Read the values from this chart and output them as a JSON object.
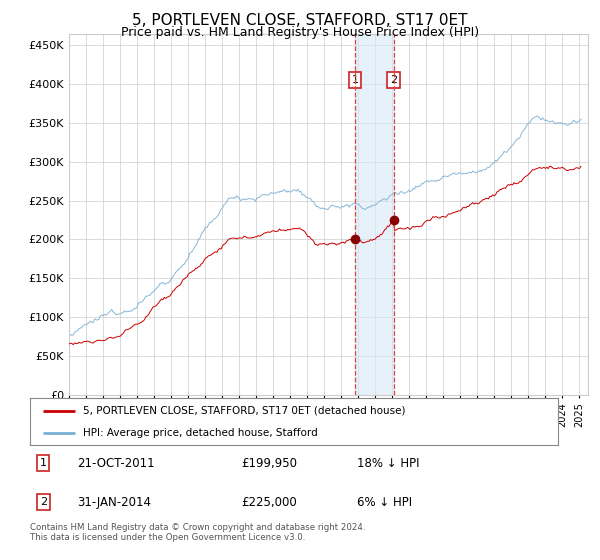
{
  "title": "5, PORTLEVEN CLOSE, STAFFORD, ST17 0ET",
  "subtitle": "Price paid vs. HM Land Registry's House Price Index (HPI)",
  "title_fontsize": 11,
  "subtitle_fontsize": 9,
  "ylabel_ticks": [
    "£0",
    "£50K",
    "£100K",
    "£150K",
    "£200K",
    "£250K",
    "£300K",
    "£350K",
    "£400K",
    "£450K"
  ],
  "ylabel_values": [
    0,
    50000,
    100000,
    150000,
    200000,
    250000,
    300000,
    350000,
    400000,
    450000
  ],
  "ylim": [
    0,
    465000
  ],
  "year_start": 1995,
  "year_end": 2025,
  "red_line_color": "#cc0000",
  "blue_line_color": "#7ab0d4",
  "grid_color": "#cccccc",
  "bg_color": "#ffffff",
  "sale1_price": 199950,
  "sale1_year": 2011.8,
  "sale2_price": 225000,
  "sale2_year": 2014.08,
  "legend_label_red": "5, PORTLEVEN CLOSE, STAFFORD, ST17 0ET (detached house)",
  "legend_label_blue": "HPI: Average price, detached house, Stafford",
  "shade_color": "#d8e8f5",
  "vline_color": "#dd4444",
  "footer": "Contains HM Land Registry data © Crown copyright and database right 2024.\nThis data is licensed under the Open Government Licence v3.0."
}
